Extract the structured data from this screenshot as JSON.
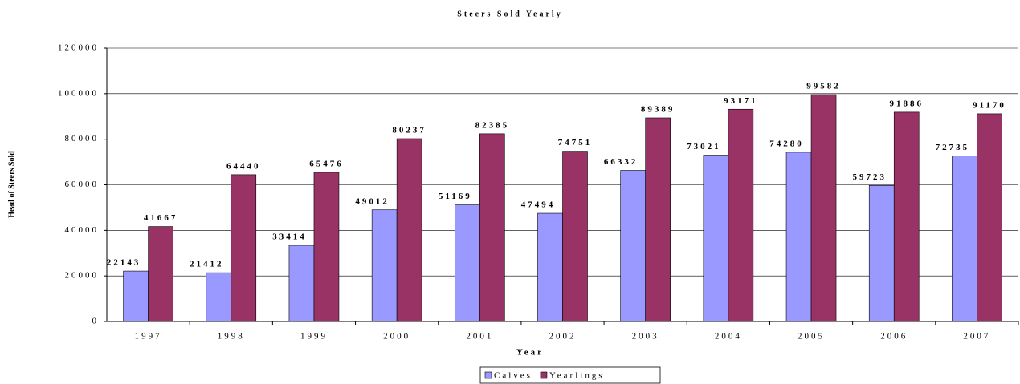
{
  "chart_data": {
    "type": "bar",
    "title": "Steers Sold Yearly",
    "x_label": "Year",
    "y_label": "Head of Steers Sold",
    "categories": [
      "1997",
      "1998",
      "1999",
      "2000",
      "2001",
      "2002",
      "2003",
      "2004",
      "2005",
      "2006",
      "2007"
    ],
    "series": [
      {
        "name": "Calves",
        "color": "#9999ff",
        "values": [
          22143,
          21412,
          33414,
          49012,
          51169,
          47494,
          66332,
          73021,
          74280,
          59723,
          72735
        ]
      },
      {
        "name": "Yearlings",
        "color": "#993366",
        "values": [
          41667,
          64440,
          65476,
          80237,
          82385,
          74751,
          89389,
          93171,
          99582,
          91886,
          91170
        ]
      }
    ],
    "ylim": [
      0,
      120000
    ],
    "yticks": [
      0,
      20000,
      40000,
      60000,
      80000,
      100000,
      120000
    ],
    "grid": true,
    "legend": "bottom"
  }
}
